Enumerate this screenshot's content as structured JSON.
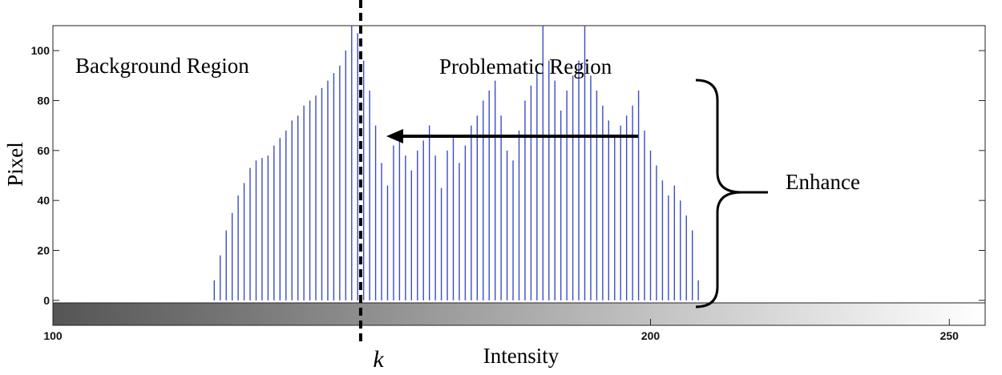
{
  "chart_data": {
    "type": "bar",
    "title": "",
    "xlabel": "Intensity",
    "ylabel": "Pixel",
    "xlim": [
      100,
      256
    ],
    "ylim": [
      -10,
      110
    ],
    "x_ticks": [
      "100",
      "200",
      "250"
    ],
    "y_ticks": [
      "100",
      "80",
      "60",
      "40",
      "20",
      "0"
    ],
    "bar_color": "#3b4cc0",
    "colorbar": {
      "from": "#555555",
      "to": "#ffffff"
    },
    "series": [
      {
        "x": [
          127,
          128,
          129,
          130,
          131,
          132,
          133,
          134,
          135,
          136,
          137,
          138,
          139,
          140,
          141,
          142,
          143,
          144,
          145,
          146,
          147,
          148,
          149,
          150,
          151,
          152,
          153,
          154,
          155,
          156,
          157,
          158,
          159,
          160,
          161,
          162,
          163,
          164,
          165,
          166,
          167,
          168,
          169,
          170,
          171,
          172,
          173,
          174,
          175,
          176,
          177,
          178,
          179,
          180,
          181,
          182,
          183,
          184,
          185,
          186,
          187,
          188,
          189,
          190,
          191,
          192,
          193,
          194,
          195,
          196,
          197,
          198,
          199,
          200,
          201,
          202,
          203,
          204,
          205,
          206,
          207,
          208
        ],
        "values": [
          8,
          18,
          28,
          35,
          42,
          47,
          53,
          56,
          57,
          58,
          62,
          65,
          68,
          72,
          74,
          78,
          80,
          82,
          85,
          88,
          91,
          94,
          100,
          110,
          107,
          96,
          84,
          70,
          55,
          46,
          62,
          66,
          58,
          52,
          60,
          64,
          70,
          58,
          45,
          60,
          65,
          55,
          62,
          70,
          74,
          80,
          84,
          88,
          74,
          60,
          56,
          68,
          80,
          86,
          92,
          112,
          96,
          88,
          76,
          84,
          90,
          96,
          112,
          90,
          84,
          78,
          72,
          66,
          70,
          74,
          78,
          84,
          68,
          60,
          54,
          48,
          42,
          46,
          40,
          34,
          28,
          8
        ]
      }
    ],
    "annotations": {
      "threshold_label": "k",
      "threshold_x": 151.5,
      "left_region": "Background Region",
      "right_region": "Problematic Region",
      "brace_label": "Enhance"
    }
  }
}
